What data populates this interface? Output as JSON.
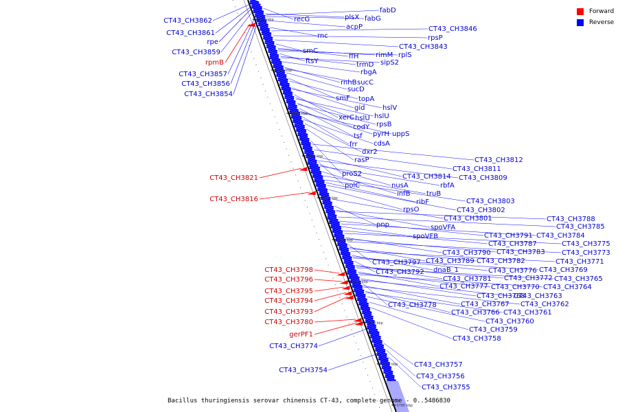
{
  "legend": [
    {
      "label": "Forward",
      "color": "#ff0000"
    },
    {
      "label": "Reverse",
      "color": "#0000ff"
    }
  ],
  "caption": "Bacillus thuringiensis serovar chinensis CT-43, complete genome - 0..5486830",
  "ticks": [
    {
      "label": "3870 kbp",
      "pos": 28
    },
    {
      "label": "3860 kbp",
      "pos": 102
    },
    {
      "label": "3850 kbp",
      "pos": 165
    },
    {
      "label": "3840 kbp",
      "pos": 227
    },
    {
      "label": "3830 kbp",
      "pos": 288
    },
    {
      "label": "3820 kbp",
      "pos": 349
    },
    {
      "label": "3810 kbp",
      "pos": 410
    },
    {
      "label": "3800 kbp",
      "pos": 470
    },
    {
      "label": "3790 kbp",
      "pos": 530
    },
    {
      "label": "3780 kbp",
      "pos": 590
    }
  ],
  "forward_labels": [
    {
      "text": "rpmB",
      "pos": 35
    },
    {
      "text": "CT43_CH3821",
      "pos": 245
    },
    {
      "text": "CT43_CH3816",
      "pos": 280
    },
    {
      "text": "CT43_CH3798",
      "pos": 398
    },
    {
      "text": "CT43_CH3796",
      "pos": 410
    },
    {
      "text": "CT43_CH3795",
      "pos": 418
    },
    {
      "text": "CT43_CH3794",
      "pos": 426
    },
    {
      "text": "CT43_CH3793",
      "pos": 432
    },
    {
      "text": "CT43_CH3780",
      "pos": 465
    },
    {
      "text": "gerPF1",
      "pos": 470
    }
  ],
  "reverse_left_labels": [
    {
      "text": "CT43_CH3862",
      "pos": 5
    },
    {
      "text": "CT43_CH3861",
      "pos": 8
    },
    {
      "text": "rpe",
      "pos": 10
    },
    {
      "text": "CT43_CH3859",
      "pos": 14
    },
    {
      "text": "CT43_CH3857",
      "pos": 22
    },
    {
      "text": "CT43_CH3856",
      "pos": 26
    },
    {
      "text": "CT43_CH3854",
      "pos": 30
    },
    {
      "text": "CT43_CH3774",
      "pos": 478
    },
    {
      "text": "CT43_CH3754",
      "pos": 515
    }
  ],
  "reverse_right_labels": [
    {
      "text": "recG",
      "pos": 12
    },
    {
      "text": "plsX",
      "pos": 20
    },
    {
      "text": "fabD",
      "pos": 22
    },
    {
      "text": "fabG",
      "pos": 24
    },
    {
      "text": "acpP",
      "pos": 30
    },
    {
      "text": "rnc",
      "pos": 40
    },
    {
      "text": "CT43_CH3846",
      "pos": 45
    },
    {
      "text": "rpsP",
      "pos": 52
    },
    {
      "text": "CT43_CH3843",
      "pos": 58
    },
    {
      "text": "smC",
      "pos": 64
    },
    {
      "text": "ffH",
      "pos": 70
    },
    {
      "text": "rimM",
      "pos": 72
    },
    {
      "text": "rplS",
      "pos": 74
    },
    {
      "text": "ftsY",
      "pos": 78
    },
    {
      "text": "trmD",
      "pos": 82
    },
    {
      "text": "sipS2",
      "pos": 84
    },
    {
      "text": "rbgA",
      "pos": 90
    },
    {
      "text": "rnhB",
      "pos": 98
    },
    {
      "text": "sucC",
      "pos": 100
    },
    {
      "text": "sucD",
      "pos": 106
    },
    {
      "text": "smF",
      "pos": 114
    },
    {
      "text": "topA",
      "pos": 118
    },
    {
      "text": "gid",
      "pos": 128
    },
    {
      "text": "hslV",
      "pos": 130
    },
    {
      "text": "xerC",
      "pos": 138
    },
    {
      "text": "hslU",
      "pos": 142
    },
    {
      "text": "hslU",
      "pos": 144
    },
    {
      "text": "codY",
      "pos": 150
    },
    {
      "text": "rpsB",
      "pos": 152
    },
    {
      "text": "tsf",
      "pos": 158
    },
    {
      "text": "pyrH",
      "pos": 162
    },
    {
      "text": "uppS",
      "pos": 164
    },
    {
      "text": "frr",
      "pos": 170
    },
    {
      "text": "cdsA",
      "pos": 174
    },
    {
      "text": "dxr2",
      "pos": 180
    },
    {
      "text": "rasP",
      "pos": 188
    },
    {
      "text": "proS2",
      "pos": 205
    },
    {
      "text": "CT43_CH3812",
      "pos": 210
    },
    {
      "text": "CT43_CH3811",
      "pos": 218
    },
    {
      "text": "CT43_CH3814",
      "pos": 228
    },
    {
      "text": "CT43_CH3809",
      "pos": 234
    },
    {
      "text": "polC",
      "pos": 236
    },
    {
      "text": "nusA",
      "pos": 240
    },
    {
      "text": "rbfA",
      "pos": 242
    },
    {
      "text": "infB",
      "pos": 250
    },
    {
      "text": "truB",
      "pos": 256
    },
    {
      "text": "CT43_CH3803",
      "pos": 262
    },
    {
      "text": "ribF",
      "pos": 266
    },
    {
      "text": "CT43_CH3802",
      "pos": 270
    },
    {
      "text": "rpsO",
      "pos": 276
    },
    {
      "text": "CT43_CH3801",
      "pos": 290
    },
    {
      "text": "pnp",
      "pos": 300
    },
    {
      "text": "spoVFA",
      "pos": 306
    },
    {
      "text": "CT43_CH3788",
      "pos": 308
    },
    {
      "text": "CT43_CH3785",
      "pos": 316
    },
    {
      "text": "CT43_CH3791",
      "pos": 322
    },
    {
      "text": "CT43_CH3784",
      "pos": 326
    },
    {
      "text": "spoVFB",
      "pos": 330
    },
    {
      "text": "CT43_CH3787",
      "pos": 336
    },
    {
      "text": "CT43_CH3775",
      "pos": 340
    },
    {
      "text": "CT43_CH3790",
      "pos": 346
    },
    {
      "text": "CT43_CH3783",
      "pos": 348
    },
    {
      "text": "CT43_CH3773",
      "pos": 352
    },
    {
      "text": "CT43_CH3797",
      "pos": 356
    },
    {
      "text": "CT43_CH3789",
      "pos": 360
    },
    {
      "text": "CT43_CH3782",
      "pos": 362
    },
    {
      "text": "CT43_CH3771",
      "pos": 366
    },
    {
      "text": "dnaB_1",
      "pos": 372
    },
    {
      "text": "CT43_CH3776",
      "pos": 374
    },
    {
      "text": "CT43_CH3769",
      "pos": 376
    },
    {
      "text": "CT43_CH3792",
      "pos": 380
    },
    {
      "text": "CT43_CH3781",
      "pos": 386
    },
    {
      "text": "CT43_CH3772",
      "pos": 388
    },
    {
      "text": "CT43_CH3765",
      "pos": 390
    },
    {
      "text": "CT43_CH3777",
      "pos": 396
    },
    {
      "text": "CT43_CH3770",
      "pos": 398
    },
    {
      "text": "CT43_CH3764",
      "pos": 400
    },
    {
      "text": "CT43_CH3768",
      "pos": 406
    },
    {
      "text": "CT43_CH3763",
      "pos": 408
    },
    {
      "text": "CT43_CH3778",
      "pos": 412
    },
    {
      "text": "CT43_CH3767",
      "pos": 416
    },
    {
      "text": "CT43_CH3762",
      "pos": 418
    },
    {
      "text": "CT43_CH3766",
      "pos": 424
    },
    {
      "text": "CT43_CH3761",
      "pos": 426
    },
    {
      "text": "CT43_CH3760",
      "pos": 432
    },
    {
      "text": "CT43_CH3759",
      "pos": 440
    },
    {
      "text": "CT43_CH3758",
      "pos": 448
    },
    {
      "text": "CT43_CH3757",
      "pos": 500
    },
    {
      "text": "CT43_CH3756",
      "pos": 510
    },
    {
      "text": "CT43_CH3755",
      "pos": 520
    }
  ]
}
